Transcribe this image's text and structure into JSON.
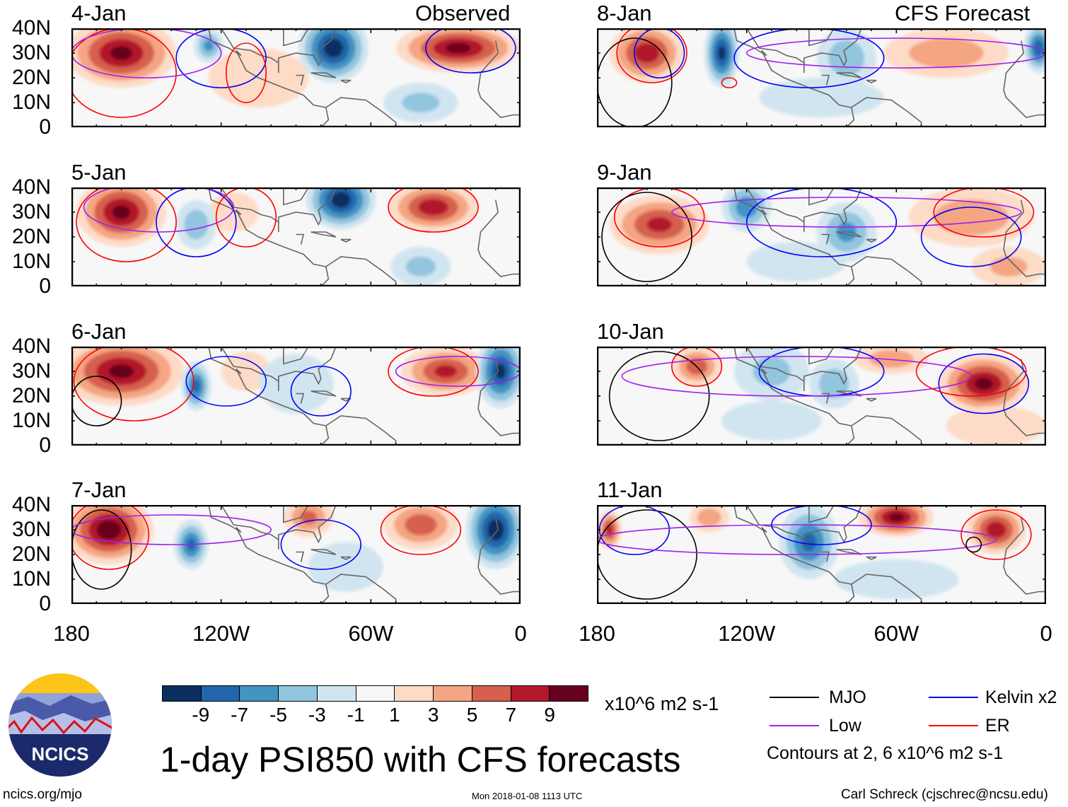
{
  "title": "1-day PSI850 with CFS forecasts",
  "left_header": "Observed",
  "right_header": "CFS Forecast",
  "lat_labels": [
    "40N",
    "30N",
    "20N",
    "10N",
    "0"
  ],
  "lon_labels": [
    "180",
    "120W",
    "60W",
    "0"
  ],
  "colorbar": {
    "colors": [
      "#0a2f5e",
      "#2166ac",
      "#4393c3",
      "#92c5de",
      "#d1e5f0",
      "#f7f7f7",
      "#fddbc7",
      "#f4a582",
      "#d6604d",
      "#b2182b",
      "#67001f"
    ],
    "labels": [
      "-9",
      "-7",
      "-5",
      "-3",
      "-1",
      "1",
      "3",
      "5",
      "7",
      "9"
    ],
    "units": "x10^6 m2 s-1"
  },
  "legend": {
    "items": [
      {
        "label": "MJO",
        "color": "#000000"
      },
      {
        "label": "Kelvin x2",
        "color": "#0000ff"
      },
      {
        "label": "Low",
        "color": "#a020f0"
      },
      {
        "label": "ER",
        "color": "#ff0000"
      }
    ],
    "note": "Contours at 2, 6 x10^6 m2 s-1"
  },
  "logo_text": "NCICS",
  "footer": {
    "url": "ncics.org/mjo",
    "timestamp": "Mon 2018-01-08 1113 UTC",
    "author": "Carl Schreck (cjschrec@ncsu.edu)"
  },
  "map": {
    "lon_range": [
      -180,
      0
    ],
    "lat_range": [
      0,
      40
    ],
    "panels": [
      {
        "date": "4-Jan",
        "column": "observed",
        "anomalies": [
          [
            -160,
            30,
            10,
            22,
            14
          ],
          [
            -105,
            20,
            2,
            20,
            12
          ],
          [
            -125,
            33,
            -6,
            6,
            7
          ],
          [
            -75,
            32,
            -11,
            14,
            14
          ],
          [
            -25,
            32,
            10,
            25,
            10
          ],
          [
            -40,
            10,
            -4,
            15,
            8
          ]
        ],
        "contours": [
          [
            "ER",
            -160,
            22,
            22,
            18
          ],
          [
            "Kelvin",
            -120,
            28,
            18,
            12
          ],
          [
            "Low",
            -150,
            30,
            30,
            10
          ],
          [
            "ER",
            -110,
            22,
            8,
            12
          ],
          [
            "Kelvin",
            -20,
            32,
            18,
            10
          ]
        ]
      },
      {
        "date": "5-Jan",
        "column": "observed",
        "anomalies": [
          [
            -160,
            30,
            10,
            18,
            14
          ],
          [
            -115,
            30,
            3,
            10,
            8
          ],
          [
            -130,
            25,
            -5,
            8,
            10
          ],
          [
            -72,
            35,
            -11,
            14,
            12
          ],
          [
            -35,
            32,
            9,
            18,
            10
          ],
          [
            -40,
            8,
            -4,
            12,
            8
          ]
        ],
        "contours": [
          [
            "ER",
            -158,
            26,
            20,
            16
          ],
          [
            "Kelvin",
            -130,
            26,
            16,
            14
          ],
          [
            "Low",
            -145,
            32,
            30,
            10
          ],
          [
            "ER",
            -110,
            28,
            12,
            12
          ],
          [
            "ER",
            -35,
            32,
            18,
            10
          ]
        ]
      },
      {
        "date": "6-Jan",
        "column": "observed",
        "anomalies": [
          [
            -160,
            30,
            10,
            25,
            14
          ],
          [
            -110,
            30,
            3,
            10,
            8
          ],
          [
            -130,
            24,
            -8,
            6,
            10
          ],
          [
            -90,
            25,
            -3,
            15,
            12
          ],
          [
            -30,
            30,
            8,
            18,
            10
          ],
          [
            -8,
            30,
            -10,
            10,
            15
          ]
        ],
        "contours": [
          [
            "ER",
            -155,
            26,
            24,
            16
          ],
          [
            "MJO",
            -170,
            18,
            10,
            10
          ],
          [
            "Kelvin",
            -118,
            26,
            16,
            10
          ],
          [
            "Kelvin",
            -80,
            22,
            12,
            10
          ],
          [
            "ER",
            -35,
            30,
            18,
            10
          ],
          [
            "Low",
            -25,
            30,
            25,
            6
          ]
        ]
      },
      {
        "date": "7-Jan",
        "column": "observed",
        "anomalies": [
          [
            -165,
            30,
            11,
            18,
            14
          ],
          [
            -132,
            24,
            -8,
            7,
            10
          ],
          [
            -85,
            35,
            6,
            10,
            8
          ],
          [
            -40,
            32,
            7,
            15,
            10
          ],
          [
            -10,
            30,
            -11,
            12,
            16
          ],
          [
            -70,
            15,
            -3,
            15,
            10
          ]
        ],
        "contours": [
          [
            "ER",
            -165,
            28,
            16,
            14
          ],
          [
            "MJO",
            -168,
            22,
            12,
            16
          ],
          [
            "Low",
            -140,
            30,
            40,
            6
          ],
          [
            "Kelvin",
            -80,
            24,
            16,
            10
          ],
          [
            "ER",
            -40,
            30,
            16,
            10
          ]
        ]
      },
      {
        "date": "8-Jan",
        "column": "forecast",
        "anomalies": [
          [
            -160,
            30,
            9,
            15,
            12
          ],
          [
            -130,
            30,
            -10,
            7,
            14
          ],
          [
            -80,
            28,
            -5,
            12,
            12
          ],
          [
            -40,
            30,
            5,
            25,
            10
          ],
          [
            -3,
            32,
            -9,
            6,
            10
          ],
          [
            -90,
            12,
            -3,
            25,
            8
          ]
        ],
        "contours": [
          [
            "ER",
            -158,
            30,
            14,
            12
          ],
          [
            "MJO",
            -165,
            18,
            15,
            18
          ],
          [
            "Kelvin",
            -155,
            30,
            10,
            10
          ],
          [
            "Kelvin",
            -95,
            28,
            30,
            12
          ],
          [
            "Low",
            -60,
            30,
            60,
            6
          ],
          [
            "ER",
            -127,
            18,
            3,
            2
          ]
        ]
      },
      {
        "date": "9-Jan",
        "column": "forecast",
        "anomalies": [
          [
            -155,
            25,
            8,
            20,
            12
          ],
          [
            -120,
            32,
            -7,
            10,
            10
          ],
          [
            -80,
            22,
            -6,
            12,
            12
          ],
          [
            -30,
            28,
            5,
            25,
            12
          ],
          [
            -15,
            8,
            4,
            15,
            8
          ],
          [
            -100,
            10,
            -3,
            20,
            8
          ]
        ],
        "contours": [
          [
            "ER",
            -155,
            28,
            18,
            12
          ],
          [
            "MJO",
            -160,
            20,
            18,
            18
          ],
          [
            "Kelvin",
            -90,
            26,
            30,
            14
          ],
          [
            "Low",
            -80,
            30,
            70,
            6
          ],
          [
            "ER",
            -25,
            30,
            20,
            10
          ],
          [
            "Kelvin",
            -30,
            20,
            20,
            12
          ]
        ]
      },
      {
        "date": "10-Jan",
        "column": "forecast",
        "anomalies": [
          [
            -140,
            32,
            7,
            10,
            8
          ],
          [
            -110,
            30,
            -4,
            15,
            12
          ],
          [
            -85,
            25,
            -5,
            10,
            10
          ],
          [
            -62,
            35,
            5,
            15,
            6
          ],
          [
            -25,
            25,
            10,
            18,
            12
          ],
          [
            -20,
            8,
            3,
            20,
            8
          ],
          [
            -110,
            10,
            -3,
            20,
            8
          ]
        ],
        "contours": [
          [
            "ER",
            -140,
            32,
            10,
            8
          ],
          [
            "MJO",
            -155,
            20,
            20,
            18
          ],
          [
            "Kelvin",
            -90,
            30,
            25,
            10
          ],
          [
            "Kelvin",
            -25,
            25,
            18,
            12
          ],
          [
            "Low",
            -100,
            28,
            70,
            8
          ],
          [
            "ER",
            -30,
            30,
            22,
            10
          ]
        ]
      },
      {
        "date": "11-Jan",
        "column": "forecast",
        "anomalies": [
          [
            -175,
            30,
            8,
            5,
            8
          ],
          [
            -135,
            35,
            5,
            8,
            6
          ],
          [
            -95,
            25,
            -8,
            12,
            15
          ],
          [
            -60,
            35,
            10,
            15,
            8
          ],
          [
            -20,
            30,
            9,
            12,
            10
          ],
          [
            -60,
            10,
            -2,
            25,
            8
          ]
        ],
        "contours": [
          [
            "MJO",
            -160,
            20,
            20,
            18
          ],
          [
            "Kelvin",
            -165,
            30,
            14,
            10
          ],
          [
            "Low",
            -100,
            26,
            80,
            6
          ],
          [
            "ER",
            -20,
            28,
            14,
            10
          ],
          [
            "MJO",
            -29,
            24,
            3,
            3
          ],
          [
            "Kelvin",
            -90,
            32,
            20,
            8
          ]
        ]
      }
    ]
  }
}
